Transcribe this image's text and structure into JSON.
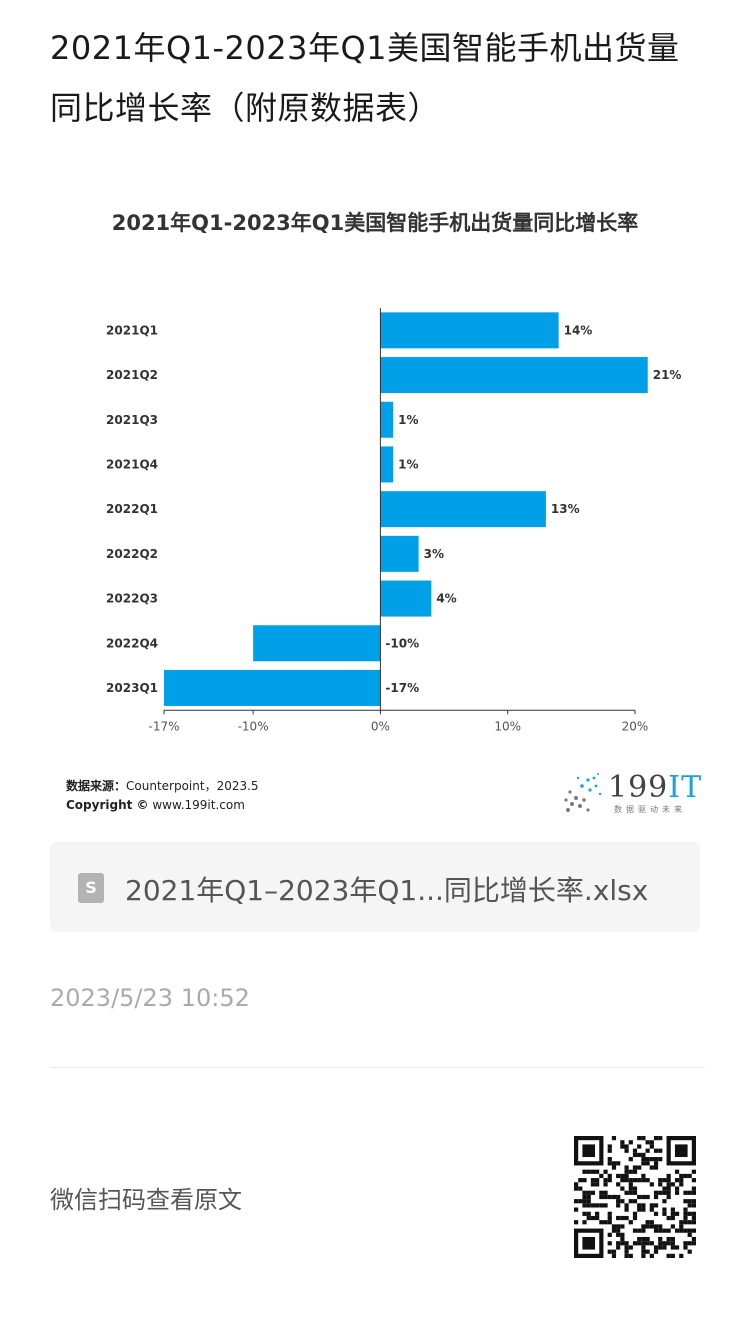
{
  "page": {
    "title": "2021年Q1-2023年Q1美国智能手机出货量同比增长率（附原数据表）"
  },
  "chart_data": {
    "type": "bar",
    "orientation": "horizontal",
    "title": "2021年Q1-2023年Q1美国智能手机出货量同比增长率",
    "categories": [
      "2021Q1",
      "2021Q2",
      "2021Q3",
      "2021Q4",
      "2022Q1",
      "2022Q2",
      "2022Q3",
      "2022Q4",
      "2023Q1"
    ],
    "values": [
      14,
      21,
      1,
      1,
      13,
      3,
      4,
      -10,
      -17
    ],
    "value_labels": [
      "14%",
      "21%",
      "1%",
      "1%",
      "13%",
      "3%",
      "4%",
      "-10%",
      "-17%"
    ],
    "xlim": [
      -17,
      20
    ],
    "x_ticks": [
      -17,
      -10,
      0,
      10,
      20
    ],
    "x_tick_labels": [
      "-17%",
      "-10%",
      "0%",
      "10%",
      "20%"
    ],
    "bar_color": "#00a0e9",
    "grid": false,
    "legend": "none"
  },
  "chart_footer": {
    "source_label": "数据来源：",
    "source_text": "Counterpoint，2023.5",
    "copyright_label": "Copyright ©",
    "copyright_text": " www.199it.com",
    "logo_main": "199",
    "logo_accent": "IT",
    "logo_tagline": "数据驱动未来"
  },
  "attachment": {
    "icon": "spreadsheet-file-icon",
    "icon_glyph": "S",
    "file_name": "2021年Q1–2023年Q1...同比增长率.xlsx"
  },
  "meta": {
    "timestamp": "2023/5/23 10:52",
    "qr_hint": "微信扫码查看原文",
    "qr_icon": "qr-code-icon"
  }
}
